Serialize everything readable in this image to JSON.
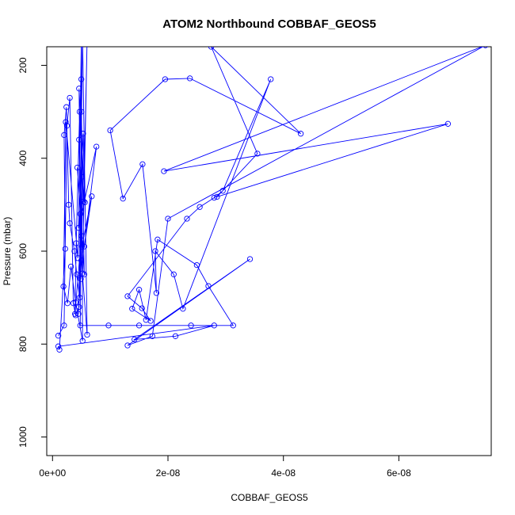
{
  "chart_data": {
    "type": "line",
    "title": "ATOM2 Northbound COBBAF_GEOS5",
    "xlabel": "COBBAF_GEOS5",
    "ylabel": "Pressure (mbar)",
    "xlim": [
      -1e-09,
      7.6e-08
    ],
    "ylim": [
      1040,
      160
    ],
    "y_reversed": true,
    "x_ticks": [
      0,
      2e-08,
      4e-08,
      6e-08
    ],
    "x_tick_labels": [
      "0e+00",
      "2e-08",
      "4e-08",
      "6e-08"
    ],
    "y_ticks": [
      200,
      400,
      600,
      800,
      1000
    ],
    "y_tick_labels": [
      "200",
      "400",
      "600",
      "800",
      "1000"
    ],
    "series": [
      {
        "color": "#0000ff",
        "marker": "open-circle",
        "points": [
          [
            1e-09,
            782
          ],
          [
            2e-09,
            760
          ],
          [
            2.5e-09,
            330
          ],
          [
            3e-09,
            270
          ],
          [
            3.6e-09,
            712
          ],
          [
            4e-09,
            738
          ],
          [
            4.6e-09,
            720
          ],
          [
            5e-09,
            300
          ],
          [
            5.5e-09,
            650
          ],
          [
            4.3e-09,
            420
          ],
          [
            4.8e-09,
            520
          ],
          [
            5.2e-09,
            140
          ],
          [
            6e-09,
            780
          ],
          [
            5e-09,
            620
          ],
          [
            4.6e-09,
            360
          ],
          [
            5.1e-09,
            590
          ],
          [
            6.8e-09,
            482
          ],
          [
            5.5e-09,
            590
          ],
          [
            7.6e-09,
            375
          ],
          [
            4.5e-09,
            550
          ],
          [
            5e-09,
            140
          ],
          [
            4.8e-09,
            760
          ],
          [
            9.7e-09,
            760
          ],
          [
            1.5e-08,
            760
          ],
          [
            2.4e-08,
            760
          ],
          [
            3.13e-08,
            760
          ],
          [
            2.7e-08,
            675
          ],
          [
            2.5e-08,
            630
          ],
          [
            1.82e-08,
            575
          ],
          [
            1.62e-08,
            748
          ],
          [
            1.5e-08,
            683
          ],
          [
            1.38e-08,
            724
          ],
          [
            1.7e-08,
            750
          ],
          [
            1.55e-08,
            723
          ],
          [
            1.3e-08,
            697
          ],
          [
            2.33e-08,
            530
          ],
          [
            2.55e-08,
            505
          ],
          [
            2.8e-08,
            485
          ],
          [
            2.95e-08,
            470
          ],
          [
            3.78e-08,
            230
          ],
          [
            2.26e-08,
            724
          ],
          [
            2.1e-08,
            650
          ],
          [
            1.78e-08,
            600
          ],
          [
            1.8e-08,
            690
          ],
          [
            1.56e-08,
            413
          ],
          [
            1.22e-08,
            487
          ],
          [
            1e-08,
            340
          ],
          [
            1.95e-08,
            230
          ],
          [
            2.38e-08,
            228
          ],
          [
            4.3e-08,
            347
          ],
          [
            2.75e-08,
            160
          ],
          [
            3.55e-08,
            390
          ],
          [
            2.85e-08,
            483
          ],
          [
            6.85e-08,
            326
          ],
          [
            1.93e-08,
            428
          ],
          [
            7.5e-08,
            157
          ],
          [
            2e-08,
            530
          ],
          [
            1.73e-08,
            783
          ],
          [
            1.3e-08,
            803
          ],
          [
            3.42e-08,
            617
          ],
          [
            1.42e-08,
            790
          ],
          [
            2.13e-08,
            783
          ],
          [
            2.8e-08,
            760
          ],
          [
            1e-09,
            805
          ],
          [
            1.2e-09,
            812
          ],
          [
            2.2e-09,
            595
          ],
          [
            2e-09,
            350
          ],
          [
            2.4e-09,
            290
          ],
          [
            2.8e-09,
            500
          ],
          [
            3e-09,
            540
          ],
          [
            3.8e-09,
            600
          ],
          [
            4.2e-09,
            650
          ],
          [
            4.7e-09,
            700
          ],
          [
            5e-09,
            230
          ],
          [
            5.2e-09,
            793
          ],
          [
            4e-09,
            710
          ],
          [
            3.2e-09,
            633
          ],
          [
            2.6e-09,
            712
          ],
          [
            1.9e-09,
            676
          ],
          [
            2.3e-09,
            322
          ],
          [
            4.4e-09,
            615
          ],
          [
            5.3e-09,
            347
          ],
          [
            5.6e-09,
            495
          ],
          [
            4.6e-09,
            250
          ],
          [
            4.9e-09,
            660
          ],
          [
            5.1e-09,
            440
          ],
          [
            4.5e-09,
            735
          ],
          [
            5e-09,
            567
          ],
          [
            3.9e-09,
            735
          ],
          [
            4.1e-09,
            583
          ],
          [
            4.7e-09,
            300
          ],
          [
            5.4e-09,
            493
          ],
          [
            6e-09,
            140
          ],
          [
            5.2e-09,
            648
          ]
        ]
      }
    ]
  }
}
